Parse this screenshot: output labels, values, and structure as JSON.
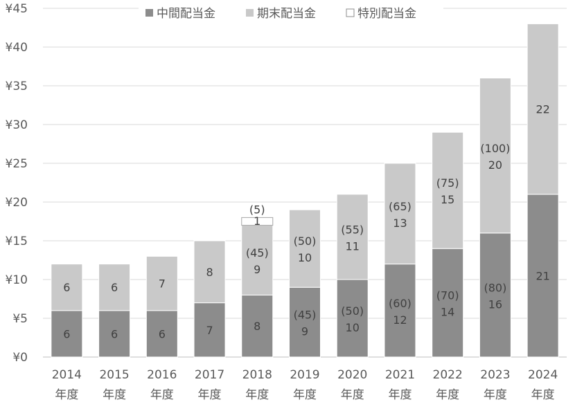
{
  "chart_data": {
    "type": "bar",
    "stacked": true,
    "title": "",
    "xlabel": "",
    "ylabel": "",
    "ylim": [
      0,
      45
    ],
    "y_ticks": [
      "¥0",
      "¥5",
      "¥10",
      "¥15",
      "¥20",
      "¥25",
      "¥30",
      "¥35",
      "¥40",
      "¥45"
    ],
    "y_tick_values": [
      0,
      5,
      10,
      15,
      20,
      25,
      30,
      35,
      40,
      45
    ],
    "grid": true,
    "legend_position": "top",
    "categories": [
      [
        "2014",
        "年度"
      ],
      [
        "2015",
        "年度"
      ],
      [
        "2016",
        "年度"
      ],
      [
        "2017",
        "年度"
      ],
      [
        "2018",
        "年度"
      ],
      [
        "2019",
        "年度"
      ],
      [
        "2020",
        "年度"
      ],
      [
        "2021",
        "年度"
      ],
      [
        "2022",
        "年度"
      ],
      [
        "2023",
        "年度"
      ],
      [
        "2024",
        "年度"
      ]
    ],
    "series": [
      {
        "name": "中間配当金",
        "color": "#8c8c8c",
        "values": [
          6,
          6,
          6,
          7,
          8,
          9,
          10,
          12,
          14,
          16,
          21
        ],
        "notes": [
          "",
          "",
          "",
          "",
          "",
          "(45)",
          "(50)",
          "(60)",
          "(70)",
          "(80)",
          ""
        ]
      },
      {
        "name": "期末配当金",
        "color": "#c9c9c9",
        "values": [
          6,
          6,
          7,
          8,
          9,
          10,
          11,
          13,
          15,
          20,
          22
        ],
        "notes": [
          "",
          "",
          "",
          "",
          "(45)",
          "(50)",
          "(55)",
          "(65)",
          "(75)",
          "(100)",
          ""
        ]
      },
      {
        "name": "特別配当金",
        "color": "#ffffff",
        "values": [
          0,
          0,
          0,
          0,
          1,
          0,
          0,
          0,
          0,
          0,
          0
        ],
        "notes": [
          "",
          "",
          "",
          "",
          "(5)",
          "",
          "",
          "",
          "",
          "",
          ""
        ]
      }
    ]
  }
}
